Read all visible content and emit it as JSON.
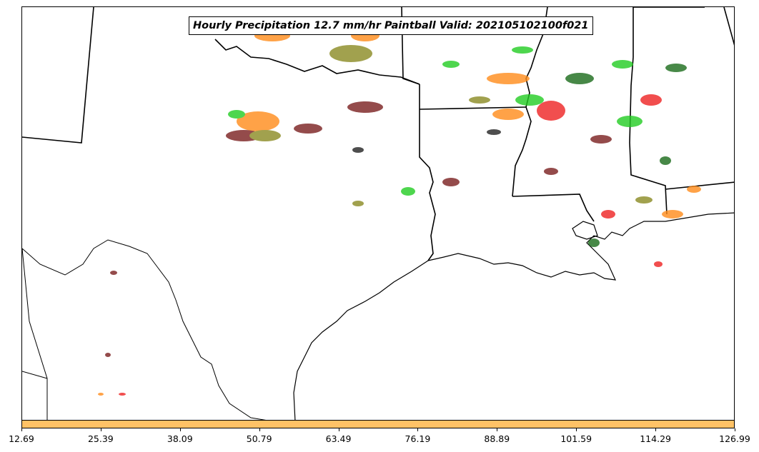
{
  "map": {
    "title": "Hourly Precipitation 12.7 mm/hr Paintball Valid: 202105102100f021",
    "colors": {
      "green": "#22cc22",
      "dark_green": "#1a6b1a",
      "orange": "#ff8c1a",
      "red": "#ee2222",
      "maroon": "#7a1f1f",
      "olive": "#8a8a22",
      "black": "#222222"
    }
  },
  "colorbar": {
    "color": "#ffc266",
    "ticks": [
      "12.69",
      "25.39",
      "38.09",
      "50.79",
      "63.49",
      "76.19",
      "88.89",
      "101.59",
      "114.29",
      "126.99"
    ]
  }
}
